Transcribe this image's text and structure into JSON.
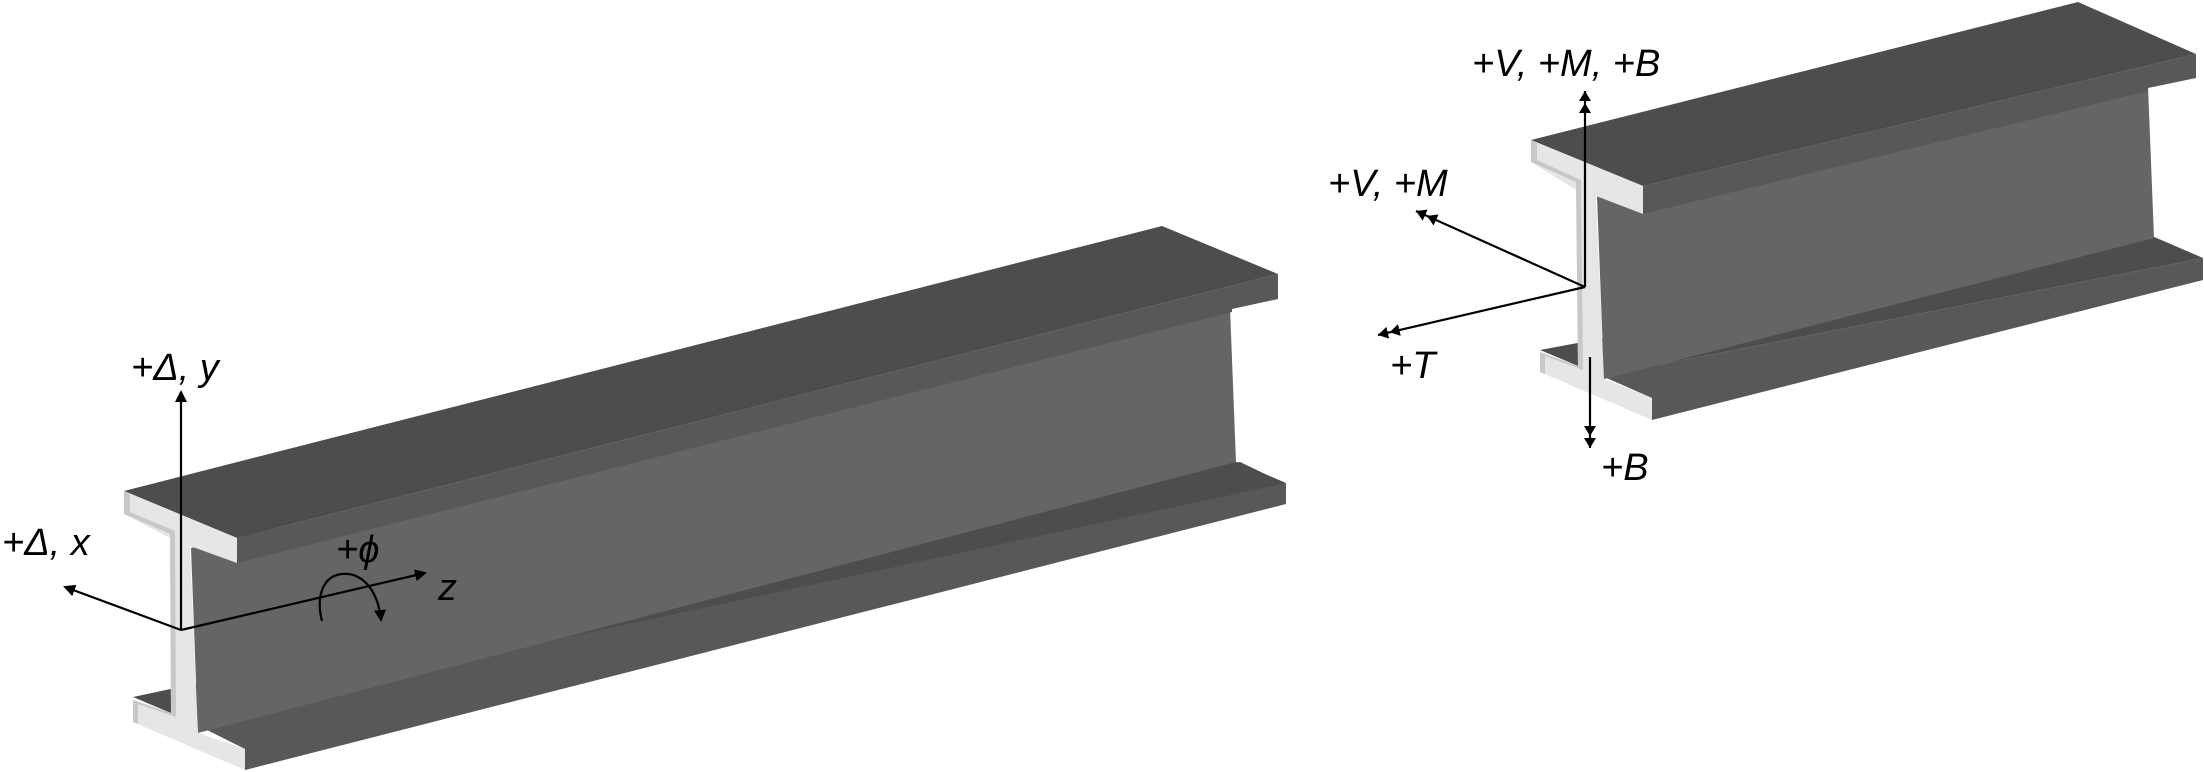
{
  "colors": {
    "flange_top": "#4d4d4f",
    "web_face": "#656567",
    "flange_edge": "#58585a",
    "section_face": "#e6e6e7",
    "section_edge": "#c8c8ca",
    "arrow": "#000000"
  },
  "left_beam": {
    "labels": {
      "delta_y": "+Δ, y",
      "delta_x": "+Δ, x",
      "phi": "+ϕ",
      "z": "z"
    }
  },
  "right_beam": {
    "labels": {
      "vmb": "+V, +M, +B",
      "vm": "+V, +M",
      "t": "+T",
      "b": "+B"
    }
  }
}
